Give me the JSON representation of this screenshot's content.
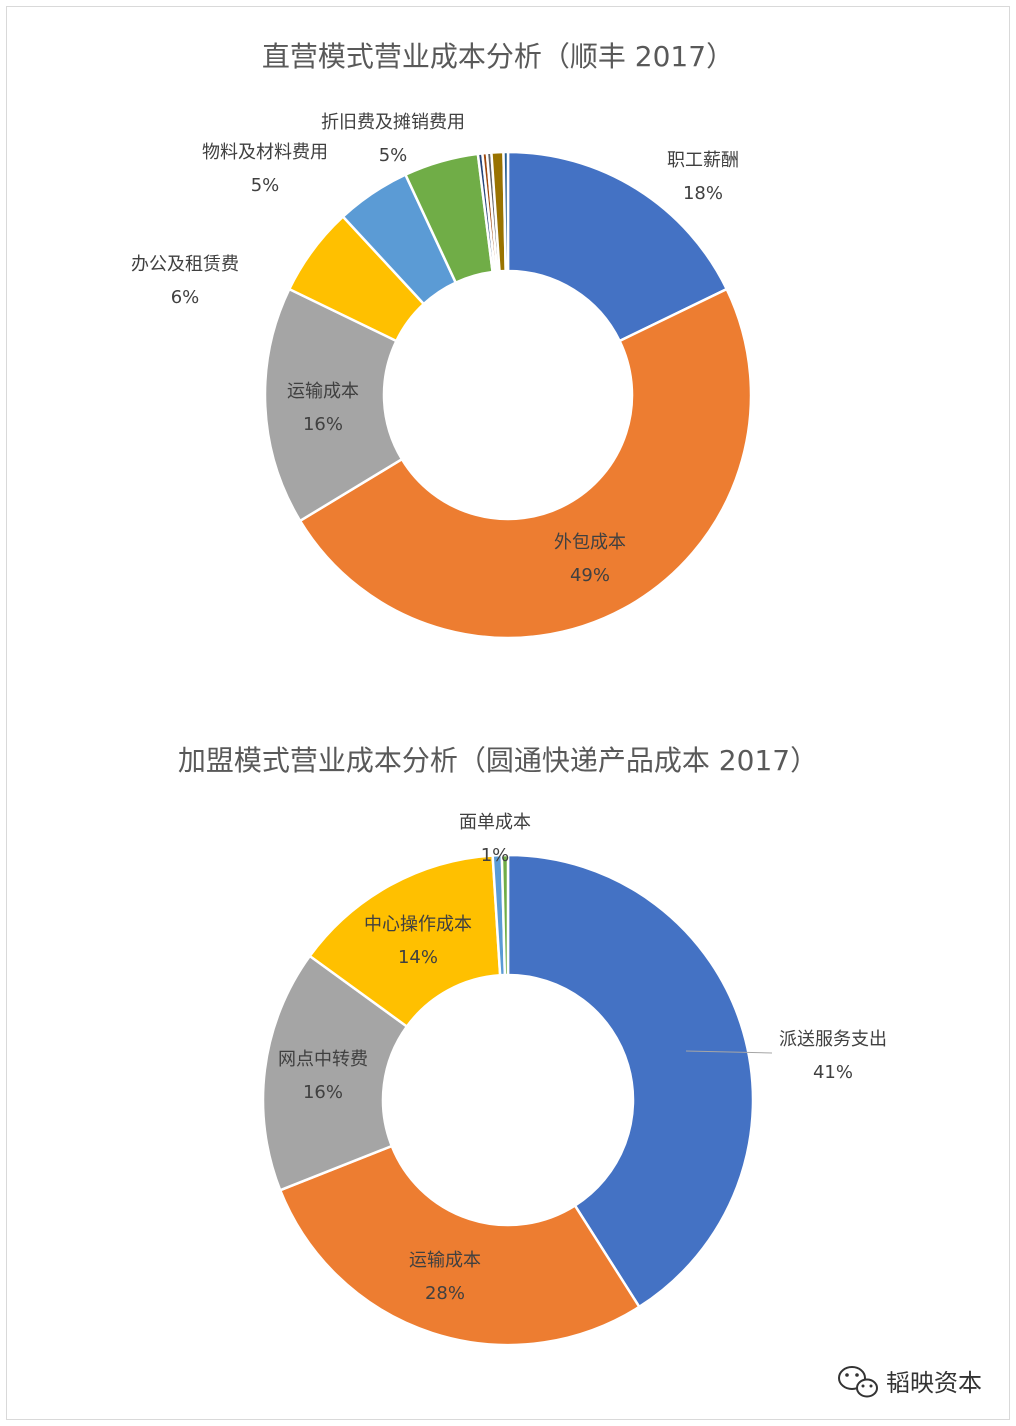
{
  "chart_data": [
    {
      "type": "pie",
      "donut": true,
      "title": "直营模式营业成本分析（顺丰 2017）",
      "slices": [
        {
          "name": "职工薪酬",
          "value": 18,
          "label": "18%",
          "color": "#4472C4",
          "show_label": true
        },
        {
          "name": "外包成本",
          "value": 49,
          "label": "49%",
          "color": "#ED7D31",
          "show_label": true
        },
        {
          "name": "运输成本",
          "value": 16,
          "label": "16%",
          "color": "#A5A5A5",
          "show_label": true
        },
        {
          "name": "办公及租赁费",
          "value": 6,
          "label": "6%",
          "color": "#FFC000",
          "show_label": true
        },
        {
          "name": "物料及材料费用",
          "value": 5,
          "label": "5%",
          "color": "#5B9BD5",
          "show_label": true
        },
        {
          "name": "折旧费及摊销费用",
          "value": 5,
          "label": "5%",
          "color": "#70AD47",
          "show_label": true
        },
        {
          "name": "",
          "value": 0.3,
          "color": "#264478",
          "show_label": false
        },
        {
          "name": "",
          "value": 0.3,
          "color": "#9E480E",
          "show_label": false
        },
        {
          "name": "",
          "value": 0.3,
          "color": "#636363",
          "show_label": false
        },
        {
          "name": "",
          "value": 0.8,
          "color": "#997300",
          "show_label": false
        },
        {
          "name": "",
          "value": 0.3,
          "color": "#255E91",
          "show_label": false
        }
      ]
    },
    {
      "type": "pie",
      "donut": true,
      "title": "加盟模式营业成本分析（圆通快递产品成本 2017）",
      "slices": [
        {
          "name": "派送服务支出",
          "value": 41,
          "label": "41%",
          "color": "#4472C4",
          "show_label": true
        },
        {
          "name": "运输成本",
          "value": 28,
          "label": "28%",
          "color": "#ED7D31",
          "show_label": true
        },
        {
          "name": "网点中转费",
          "value": 16,
          "label": "16%",
          "color": "#A5A5A5",
          "show_label": true
        },
        {
          "name": "中心操作成本",
          "value": 14,
          "label": "14%",
          "color": "#FFC000",
          "show_label": true
        },
        {
          "name": "面单成本",
          "value": 0.6,
          "label": "1%",
          "color": "#5B9BD5",
          "show_label": true
        },
        {
          "name": "",
          "value": 0.4,
          "color": "#70AD47",
          "show_label": false
        }
      ]
    }
  ],
  "watermark": {
    "text": "韬映资本",
    "icon": "wechat-icon"
  }
}
